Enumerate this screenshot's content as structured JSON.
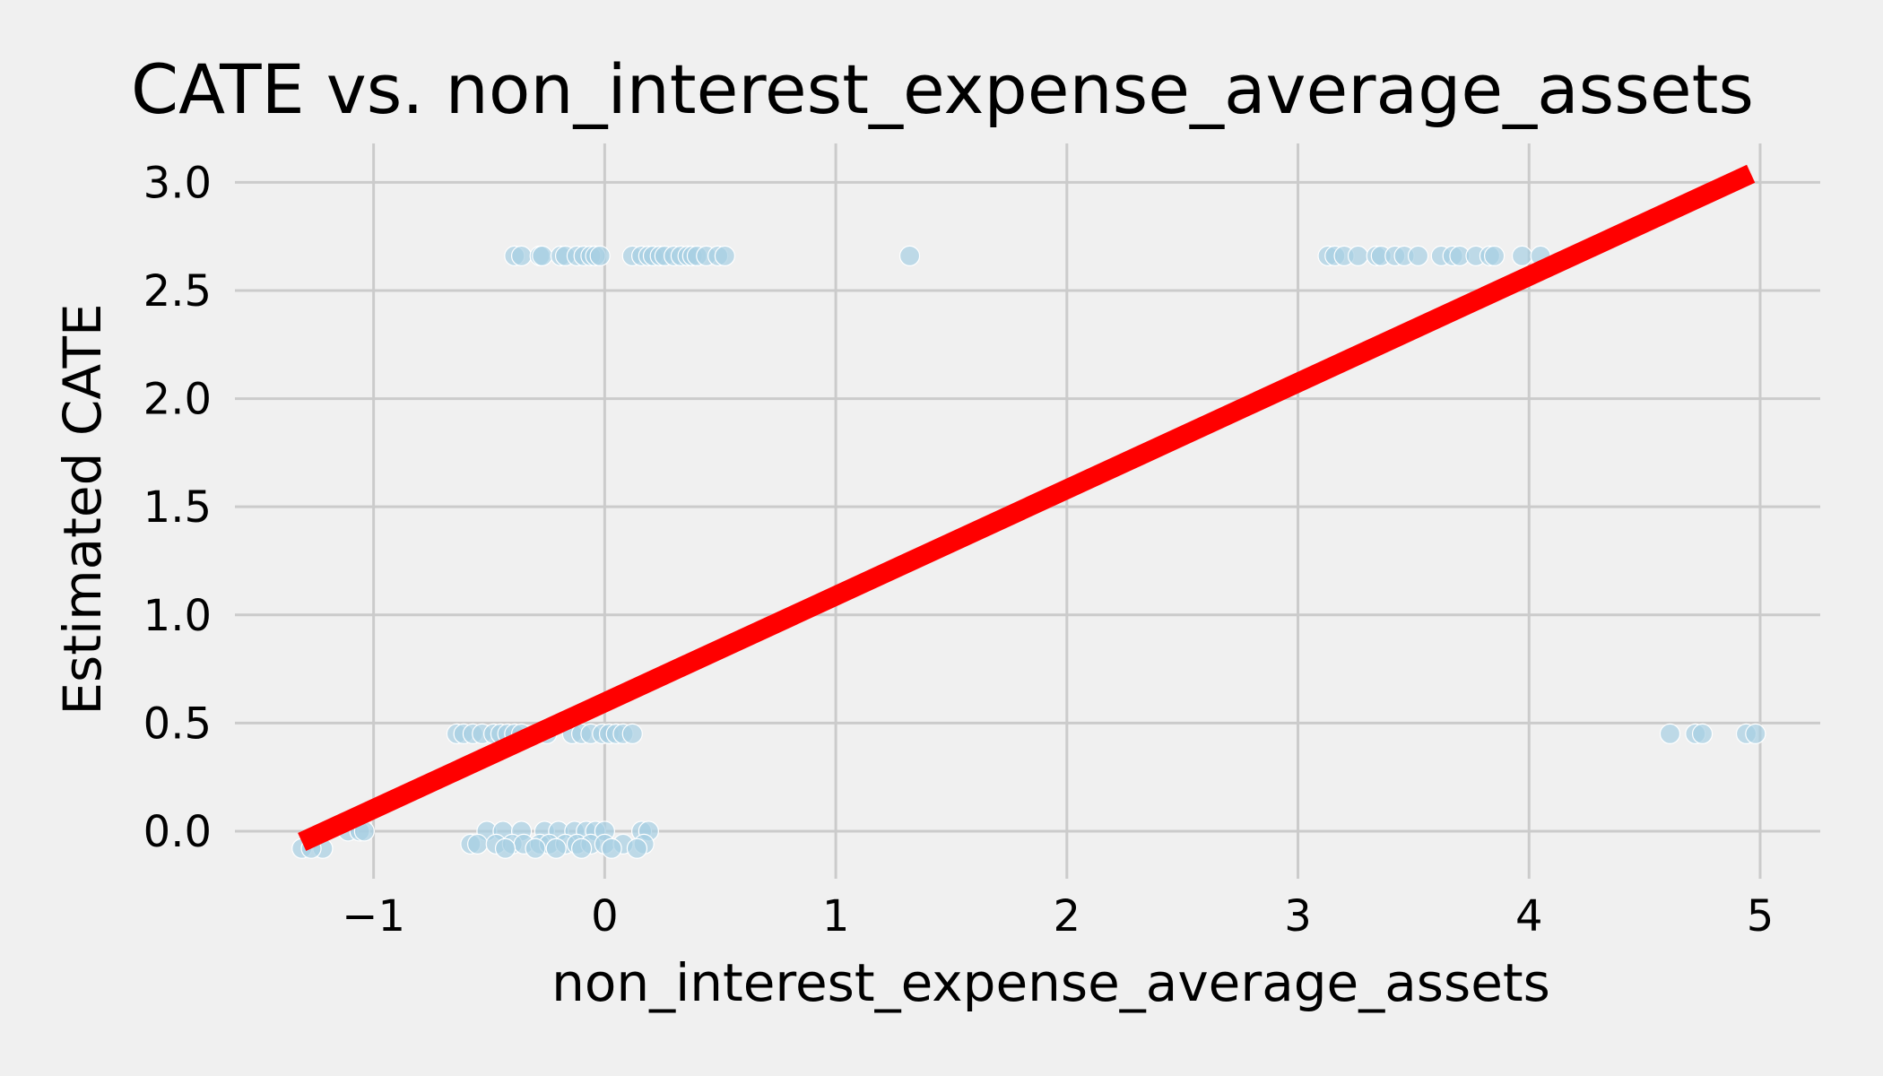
{
  "chart_data": {
    "type": "scatter",
    "title": "CATE vs. non_interest_expense_average_assets",
    "xlabel": "non_interest_expense_average_assets",
    "ylabel": "Estimated CATE",
    "xlim": [
      -1.6,
      5.26
    ],
    "ylim": [
      -0.22,
      3.18
    ],
    "xticks": [
      -1,
      0,
      1,
      2,
      3,
      4,
      5
    ],
    "xtick_labels": [
      "−1",
      "0",
      "1",
      "2",
      "3",
      "4",
      "5"
    ],
    "yticks": [
      0.0,
      0.5,
      1.0,
      1.5,
      2.0,
      2.5,
      3.0
    ],
    "ytick_labels": [
      "0.0",
      "0.5",
      "1.0",
      "1.5",
      "2.0",
      "2.5",
      "3.0"
    ],
    "grid": true,
    "colors": {
      "background": "#f0f0f0",
      "points": "#a6cee3",
      "fit_line": "#ff0000",
      "grid": "#cbcbcb"
    },
    "series": [
      {
        "type": "scatter",
        "points": [
          [
            -0.39,
            2.66
          ],
          [
            -0.36,
            2.66
          ],
          [
            -0.28,
            2.66
          ],
          [
            -0.27,
            2.66
          ],
          [
            -0.19,
            2.66
          ],
          [
            -0.17,
            2.66
          ],
          [
            -0.12,
            2.66
          ],
          [
            -0.09,
            2.66
          ],
          [
            -0.06,
            2.66
          ],
          [
            -0.04,
            2.66
          ],
          [
            -0.02,
            2.66
          ],
          [
            0.12,
            2.66
          ],
          [
            0.16,
            2.66
          ],
          [
            0.19,
            2.66
          ],
          [
            0.21,
            2.66
          ],
          [
            0.24,
            2.66
          ],
          [
            0.26,
            2.66
          ],
          [
            0.3,
            2.66
          ],
          [
            0.33,
            2.66
          ],
          [
            0.36,
            2.66
          ],
          [
            0.38,
            2.66
          ],
          [
            0.4,
            2.66
          ],
          [
            0.44,
            2.66
          ],
          [
            0.49,
            2.66
          ],
          [
            0.52,
            2.66
          ],
          [
            1.32,
            2.66
          ],
          [
            3.13,
            2.66
          ],
          [
            3.16,
            2.66
          ],
          [
            3.2,
            2.66
          ],
          [
            3.26,
            2.66
          ],
          [
            3.34,
            2.66
          ],
          [
            3.36,
            2.66
          ],
          [
            3.42,
            2.66
          ],
          [
            3.46,
            2.66
          ],
          [
            3.52,
            2.66
          ],
          [
            3.62,
            2.66
          ],
          [
            3.67,
            2.66
          ],
          [
            3.7,
            2.66
          ],
          [
            3.77,
            2.66
          ],
          [
            3.83,
            2.66
          ],
          [
            3.85,
            2.66
          ],
          [
            3.97,
            2.66
          ],
          [
            4.05,
            2.66
          ],
          [
            -0.64,
            0.45
          ],
          [
            -0.61,
            0.45
          ],
          [
            -0.57,
            0.45
          ],
          [
            -0.53,
            0.45
          ],
          [
            -0.48,
            0.45
          ],
          [
            -0.45,
            0.45
          ],
          [
            -0.42,
            0.45
          ],
          [
            -0.39,
            0.45
          ],
          [
            -0.36,
            0.45
          ],
          [
            -0.29,
            0.45
          ],
          [
            -0.25,
            0.45
          ],
          [
            -0.14,
            0.45
          ],
          [
            -0.1,
            0.45
          ],
          [
            -0.06,
            0.45
          ],
          [
            -0.01,
            0.45
          ],
          [
            0.02,
            0.45
          ],
          [
            0.05,
            0.45
          ],
          [
            0.08,
            0.45
          ],
          [
            0.12,
            0.45
          ],
          [
            4.61,
            0.45
          ],
          [
            4.72,
            0.45
          ],
          [
            4.75,
            0.45
          ],
          [
            4.94,
            0.45
          ],
          [
            4.98,
            0.45
          ],
          [
            -1.31,
            -0.08
          ],
          [
            -1.22,
            -0.08
          ],
          [
            -1.27,
            -0.08
          ],
          [
            -1.11,
            0.0
          ],
          [
            -1.06,
            0.0
          ],
          [
            -1.04,
            0.0
          ],
          [
            -0.51,
            0.0
          ],
          [
            -0.44,
            0.0
          ],
          [
            -0.36,
            0.0
          ],
          [
            -0.26,
            0.0
          ],
          [
            -0.2,
            0.0
          ],
          [
            -0.13,
            0.0
          ],
          [
            -0.08,
            0.0
          ],
          [
            -0.04,
            0.0
          ],
          [
            0.0,
            0.0
          ],
          [
            0.16,
            0.0
          ],
          [
            0.19,
            0.0
          ],
          [
            -0.58,
            -0.06
          ],
          [
            -0.55,
            -0.06
          ],
          [
            -0.47,
            -0.06
          ],
          [
            -0.4,
            -0.06
          ],
          [
            -0.35,
            -0.06
          ],
          [
            -0.28,
            -0.06
          ],
          [
            -0.24,
            -0.06
          ],
          [
            -0.17,
            -0.06
          ],
          [
            -0.12,
            -0.06
          ],
          [
            -0.06,
            -0.06
          ],
          [
            0.0,
            -0.06
          ],
          [
            0.08,
            -0.06
          ],
          [
            0.17,
            -0.06
          ],
          [
            -0.43,
            -0.08
          ],
          [
            -0.3,
            -0.08
          ],
          [
            -0.21,
            -0.08
          ],
          [
            -0.1,
            -0.08
          ],
          [
            0.03,
            -0.08
          ],
          [
            0.14,
            -0.08
          ]
        ]
      },
      {
        "type": "line",
        "x": [
          -1.31,
          4.96
        ],
        "y": [
          -0.05,
          3.04
        ]
      }
    ]
  }
}
